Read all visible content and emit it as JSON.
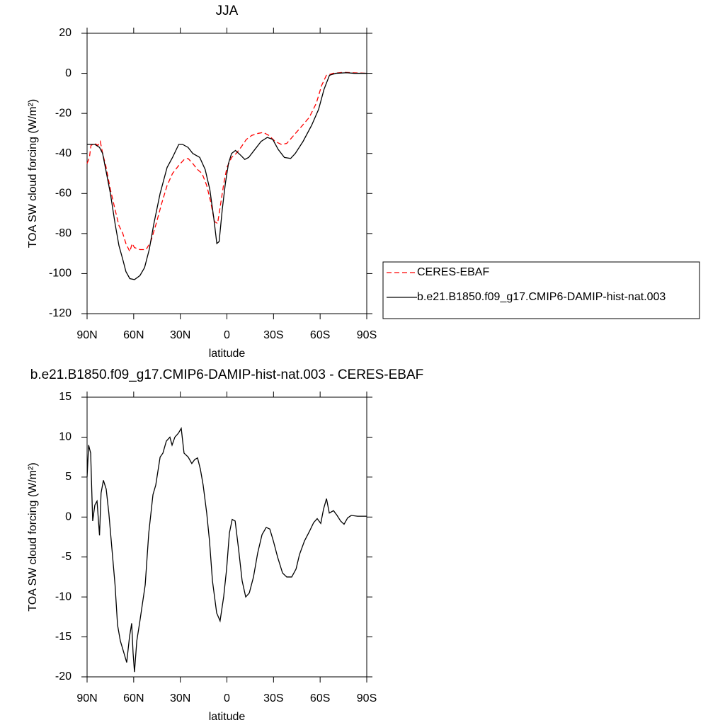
{
  "chart_data": [
    {
      "type": "line",
      "title": "JJA",
      "xlabel": "latitude",
      "ylabel": "TOA SW cloud forcing (W/m²)",
      "xlim": [
        90,
        -90
      ],
      "xticks": [
        {
          "value": 90,
          "label": "90N"
        },
        {
          "value": 60,
          "label": "60N"
        },
        {
          "value": 30,
          "label": "30N"
        },
        0,
        {
          "value": -30,
          "label": "30S"
        },
        {
          "value": -60,
          "label": "60S"
        },
        {
          "value": -90,
          "label": "90S"
        }
      ],
      "ylim": [
        -120,
        20
      ],
      "yticks": [
        20,
        0,
        -20,
        -40,
        -60,
        -80,
        -100,
        -120
      ],
      "legend": "right",
      "series": [
        {
          "name": "CERES-EBAF",
          "color": "#ff0000",
          "dash": true,
          "x": [
            90,
            88.5,
            87.5,
            85,
            83,
            81.5,
            80,
            78,
            75,
            72,
            69.5,
            67,
            65,
            62.5,
            61,
            59.5,
            56,
            52,
            49,
            45.5,
            42,
            38.5,
            35,
            31,
            27.5,
            25,
            22,
            19,
            16,
            13,
            10.5,
            8,
            6,
            4,
            2,
            0,
            -3,
            -6,
            -9,
            -12.5,
            -16,
            -20,
            -23.5,
            -27,
            -31,
            -35,
            -38.5,
            -43,
            -47.5,
            -53,
            -57.5,
            -61,
            -64,
            -68.5,
            -75,
            -90
          ],
          "values": [
            -45,
            -42,
            -36,
            -35,
            -36,
            -34,
            -40,
            -46,
            -58,
            -68,
            -76,
            -80,
            -85,
            -89,
            -85,
            -87,
            -88,
            -88,
            -84,
            -75,
            -65,
            -56,
            -50,
            -46,
            -43,
            -42.5,
            -45,
            -48,
            -50,
            -56,
            -64,
            -74,
            -75,
            -65,
            -55,
            -47,
            -42,
            -40,
            -37,
            -33,
            -31,
            -30,
            -29.5,
            -31,
            -34,
            -35.5,
            -35,
            -31,
            -27,
            -22,
            -15,
            -6,
            -1,
            0,
            0.5,
            0
          ]
        },
        {
          "name": "b.e21.B1850.f09_g17.CMIP6-DAMIP-hist-nat.003",
          "color": "#000000",
          "dash": false,
          "x": [
            90,
            85,
            82,
            80,
            78,
            75,
            72,
            69.5,
            67,
            65,
            62.5,
            59.5,
            56,
            53,
            50,
            47,
            43,
            38.5,
            35,
            31,
            28.5,
            25,
            22,
            17.5,
            14,
            11,
            8.5,
            6.5,
            5,
            3,
            1,
            -1,
            -3,
            -5.5,
            -9,
            -11.5,
            -14,
            -18,
            -22,
            -26,
            -29.5,
            -33,
            -37,
            -41,
            -44,
            -49,
            -54.5,
            -59,
            -62.5,
            -66,
            -70,
            -77,
            -82,
            -90
          ],
          "values": [
            -35.5,
            -35.5,
            -37,
            -40,
            -48,
            -60,
            -75,
            -86,
            -93,
            -99,
            -102.5,
            -103,
            -101,
            -97,
            -88,
            -75,
            -60,
            -47,
            -42,
            -35.5,
            -35.5,
            -37,
            -40,
            -42,
            -48,
            -58,
            -72,
            -85,
            -84,
            -68,
            -55,
            -45,
            -40,
            -38.5,
            -41,
            -43,
            -42,
            -38,
            -34,
            -32,
            -33,
            -38,
            -42,
            -42.5,
            -40,
            -34,
            -26,
            -18,
            -8,
            -1,
            0,
            0.3,
            0,
            0
          ]
        }
      ]
    },
    {
      "type": "line",
      "title": "b.e21.B1850.f09_g17.CMIP6-DAMIP-hist-nat.003 - CERES-EBAF",
      "xlabel": "latitude",
      "ylabel": "TOA SW cloud forcing (W/m²)",
      "xlim": [
        90,
        -90
      ],
      "xticks": [
        {
          "value": 90,
          "label": "90N"
        },
        {
          "value": 60,
          "label": "60N"
        },
        {
          "value": 30,
          "label": "30N"
        },
        0,
        {
          "value": -30,
          "label": "30S"
        },
        {
          "value": -60,
          "label": "60S"
        },
        {
          "value": -90,
          "label": "90S"
        }
      ],
      "ylim": [
        -20,
        15
      ],
      "yticks": [
        15,
        10,
        5,
        0,
        -5,
        -10,
        -15,
        -20
      ],
      "series": [
        {
          "color": "#000000",
          "dash": false,
          "x": [
            90,
            89,
            87.7,
            86.4,
            85,
            83.6,
            82,
            81,
            79.5,
            77.7,
            76,
            74,
            72,
            70.4,
            68.6,
            66.3,
            64.5,
            62.7,
            61.3,
            60.4,
            59.5,
            58,
            56,
            52.6,
            50.3,
            47.6,
            45.8,
            43,
            41.2,
            39,
            36.7,
            35.3,
            33.5,
            31.2,
            29.4,
            27.6,
            24.9,
            22.6,
            20.7,
            18.9,
            17.1,
            15.3,
            13,
            11.2,
            9.3,
            6.6,
            4.4,
            2.1,
            0.2,
            -1.6,
            -3.4,
            -5.3,
            -7.5,
            -9.8,
            -12.1,
            -14.4,
            -17.1,
            -19.8,
            -22.6,
            -25.3,
            -27.6,
            -29.9,
            -32.6,
            -35.8,
            -38.5,
            -41.7,
            -44.5,
            -46.7,
            -49.9,
            -53.1,
            -55.8,
            -58.1,
            -60.4,
            -62.2,
            -64.1,
            -65.9,
            -68.6,
            -70.9,
            -73.2,
            -75.4,
            -77.7,
            -80,
            -84.1,
            -90
          ],
          "values": [
            5,
            9,
            8,
            -0.5,
            1.5,
            2,
            -2.3,
            3,
            4.6,
            3.5,
            0.5,
            -4,
            -8.5,
            -13.5,
            -15.5,
            -17,
            -18.2,
            -15,
            -13.3,
            -17,
            -19.4,
            -15.5,
            -13,
            -8.5,
            -2,
            2.8,
            4,
            7.5,
            8,
            9.5,
            10,
            9,
            10,
            10.5,
            11.1,
            8,
            7.5,
            6.7,
            7.2,
            7.4,
            6,
            4,
            0.5,
            -3,
            -8,
            -12,
            -13,
            -10,
            -6.5,
            -2,
            -0.3,
            -0.5,
            -4,
            -8,
            -10,
            -9.5,
            -7.5,
            -4.5,
            -2.2,
            -1.3,
            -1.5,
            -3,
            -5,
            -7,
            -7.5,
            -7.5,
            -6.5,
            -4.7,
            -3,
            -1.8,
            -0.7,
            -0.2,
            -0.8,
            1,
            2.3,
            0.5,
            0.8,
            0.2,
            -0.5,
            -0.9,
            -0.1,
            0.2,
            0.1,
            0.1
          ]
        }
      ]
    }
  ]
}
